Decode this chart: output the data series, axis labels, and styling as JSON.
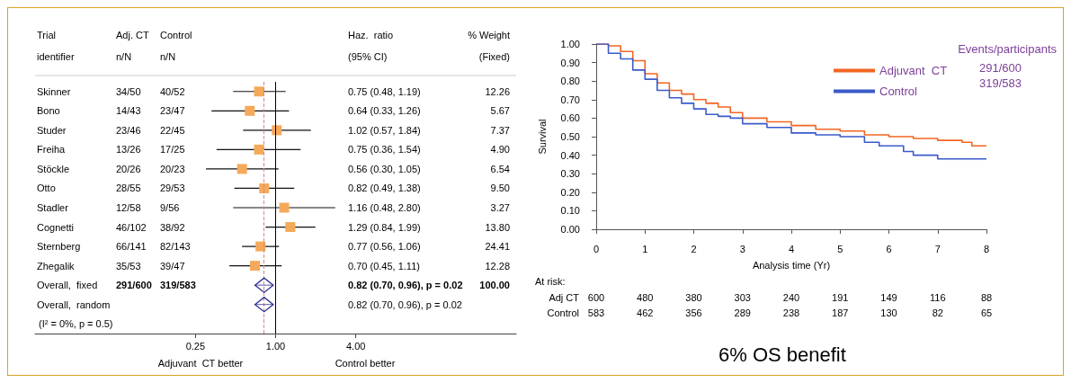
{
  "chart_data": [
    {
      "type": "scatter",
      "orientation": "horizontal",
      "log": "x",
      "categories": [
        "Skinner",
        "Bono",
        "Studer",
        "Freiha",
        "Stöckle",
        "Otto",
        "Stadler",
        "Cognetti",
        "Sternberg",
        "Zhegalik",
        "Overall,  fixed",
        "Overall,  random",
        null
      ],
      "series": [
        {
          "type": "scatter",
          "marker": "square",
          "color": "#f5a95a",
          "values": [
            0.75,
            0.64,
            1.02,
            0.75,
            0.56,
            0.82,
            1.16,
            1.29,
            0.77,
            0.7,
            null,
            null,
            null
          ],
          "errors": [
            [
              0.48,
              1.19
            ],
            [
              0.33,
              1.26
            ],
            [
              0.57,
              1.84
            ],
            [
              0.36,
              1.54
            ],
            [
              0.3,
              1.05
            ],
            [
              0.49,
              1.38
            ],
            [
              0.48,
              2.8
            ],
            [
              0.84,
              1.99
            ],
            [
              0.56,
              1.06
            ],
            [
              0.45,
              1.11
            ],
            null,
            null,
            null
          ]
        },
        {
          "type": "scatter",
          "marker": "diamond",
          "color": "#2e3192",
          "values": [
            null,
            null,
            null,
            null,
            null,
            null,
            null,
            null,
            null,
            null,
            0.82,
            0.82,
            null
          ],
          "errors": [
            null,
            null,
            null,
            null,
            null,
            null,
            null,
            null,
            null,
            null,
            [
              0.7,
              0.96
            ],
            [
              0.7,
              0.96
            ],
            null
          ]
        }
      ],
      "xlim": [
        0.015625,
        64
      ],
      "xticks": [
        {
          "value": 0.25,
          "label": "0.25"
        },
        {
          "value": 1,
          "label": "1.00"
        },
        {
          "value": 4,
          "label": "4.00"
        }
      ],
      "ref_lines": [
        {
          "axis": "x",
          "value": 1,
          "color": "#000000",
          "line_style": "solid"
        },
        {
          "axis": "x",
          "value": 0.82,
          "color": "#d48a8a",
          "line_style": "dashed"
        }
      ],
      "annotations": [
        "Trial",
        "identifier",
        "Adj. CT",
        "n/N",
        "Control",
        "n/N",
        "Haz.  ratio",
        "(95% CI)",
        "% Weight",
        "(Fixed)",
        "(I² = 0%, p = 0.5)",
        "Adjuvant  CT better",
        "Control better",
        "34/50",
        "40/52",
        "0.75 (0.48, 1.19)",
        "12.26",
        "14/43",
        "23/47",
        "0.64 (0.33, 1.26)",
        "5.67",
        "23/46",
        "22/45",
        "1.02 (0.57, 1.84)",
        "7.37",
        "13/26",
        "17/25",
        "0.75 (0.36, 1.54)",
        "4.90",
        "20/26",
        "20/23",
        "0.56 (0.30, 1.05)",
        "6.54",
        "28/55",
        "29/53",
        "0.82 (0.49, 1.38)",
        "9.50",
        "12/58",
        "9/56",
        "1.16 (0.48, 2.80)",
        "3.27",
        "46/102",
        "38/92",
        "1.29 (0.84, 1.99)",
        "13.80",
        "66/141",
        "82/143",
        "0.77 (0.56, 1.06)",
        "24.41",
        "35/53",
        "39/47",
        "0.70 (0.45, 1.11)",
        "12.28",
        "291/600",
        "319/583",
        "0.82 (0.70, 0.96), p = 0.02",
        "100.00",
        "0.82 (0.70, 0.96), p = 0.02"
      ]
    },
    {
      "type": "step",
      "xlabel": "Analysis time (Yr)",
      "ylabel": "Survival",
      "legend": "top right",
      "legend_title": "Events/participants",
      "xlim": [
        0,
        8
      ],
      "xticks": [
        0,
        1,
        2,
        3,
        4,
        5,
        6,
        7,
        8
      ],
      "ylim": [
        0,
        1
      ],
      "yticks": [
        {
          "value": 0,
          "label": "0.00"
        },
        {
          "value": 0.1,
          "label": "0.10"
        },
        {
          "value": 0.2,
          "label": "0.20"
        },
        {
          "value": 0.3,
          "label": "0.30"
        },
        {
          "value": 0.4,
          "label": "0.40"
        },
        {
          "value": 0.5,
          "label": "0.50"
        },
        {
          "value": 0.6,
          "label": "0.60"
        },
        {
          "value": 0.7,
          "label": "0.70"
        },
        {
          "value": 0.8,
          "label": "0.80"
        },
        {
          "value": 0.9,
          "label": "0.90"
        },
        {
          "value": 1,
          "label": "1.00"
        }
      ],
      "series": [
        {
          "name": "Adjuvant  CT",
          "color": "#f26522",
          "x": [
            0,
            0.25,
            0.5,
            0.75,
            1,
            1.25,
            1.5,
            1.75,
            2,
            2.25,
            2.5,
            2.75,
            3,
            3.5,
            4,
            4.5,
            5,
            5.5,
            6,
            6.5,
            7,
            7.5,
            7.7,
            8
          ],
          "values": [
            1.0,
            0.99,
            0.96,
            0.91,
            0.84,
            0.79,
            0.75,
            0.73,
            0.7,
            0.68,
            0.66,
            0.63,
            0.6,
            0.58,
            0.56,
            0.54,
            0.53,
            0.51,
            0.5,
            0.49,
            0.48,
            0.47,
            0.45,
            0.45
          ]
        },
        {
          "name": "Control",
          "color": "#3b5bc8",
          "x": [
            0,
            0.25,
            0.5,
            0.75,
            1,
            1.25,
            1.5,
            1.75,
            2,
            2.25,
            2.5,
            2.75,
            3,
            3.5,
            4,
            4.5,
            5,
            5.5,
            5.8,
            6,
            6.3,
            6.5,
            7,
            8
          ],
          "values": [
            1.0,
            0.95,
            0.92,
            0.86,
            0.81,
            0.75,
            0.71,
            0.68,
            0.65,
            0.62,
            0.61,
            0.6,
            0.57,
            0.55,
            0.52,
            0.51,
            0.5,
            0.47,
            0.45,
            0.45,
            0.42,
            0.4,
            0.38,
            0.38
          ]
        }
      ],
      "annotations": [
        "291/600",
        "319/583",
        "At risk:",
        "Adj CT",
        "Control",
        "6% OS benefit",
        "600",
        "480",
        "380",
        "303",
        "240",
        "191",
        "149",
        "116",
        "88",
        "583",
        "462",
        "356",
        "289",
        "238",
        "187",
        "130",
        "82",
        "65"
      ]
    }
  ]
}
